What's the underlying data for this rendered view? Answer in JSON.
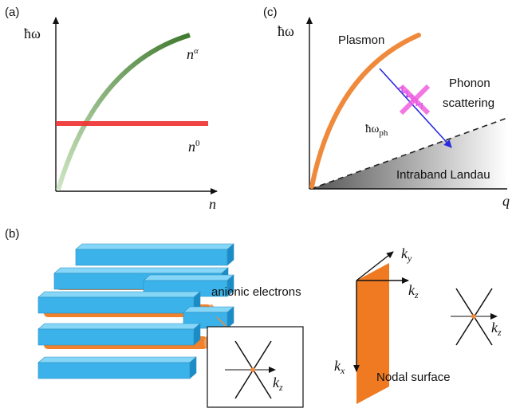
{
  "panel_a": {
    "label": "(a)",
    "y_axis": "ħω",
    "curve_label": {
      "base": "n",
      "sup": "α"
    },
    "line_label": {
      "base": "n",
      "sup": "0"
    },
    "x_axis": "n"
  },
  "panel_b": {
    "label": "(b)",
    "annotation": "anionic electrons",
    "inset_axis": {
      "base": "k",
      "sub": "z"
    },
    "axes": [
      {
        "base": "k",
        "sub": "y"
      },
      {
        "base": "k",
        "sub": "z"
      },
      {
        "base": "k",
        "sub": "x"
      }
    ],
    "surface_label": "Nodal surface",
    "node_axis": {
      "base": "k",
      "sub": "z"
    }
  },
  "panel_c": {
    "label": "(c)",
    "y_axis": "ħω",
    "curve_label": "Plasmon",
    "scattering_label": [
      "Phonon",
      "scattering"
    ],
    "phonon_label": {
      "base": "ħω",
      "sub": "ph"
    },
    "region_label": "Intraband Landau",
    "x_axis": "q"
  }
}
